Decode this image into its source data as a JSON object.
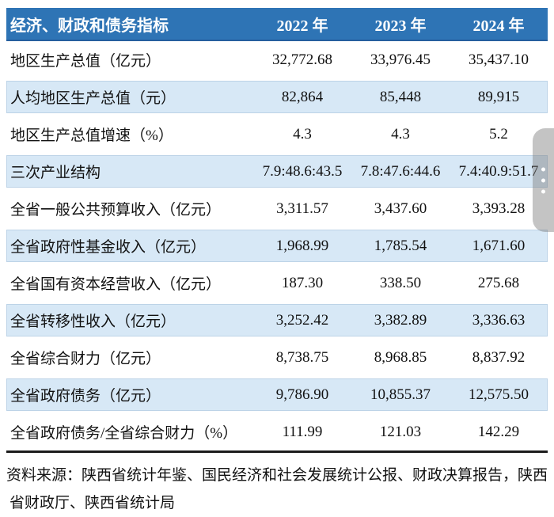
{
  "colors": {
    "header_bg": "#2e74b5",
    "header_border": "#255f9e",
    "header_text": "#ffffff",
    "shaded_row_bg": "#d7e8f6",
    "body_text": "#111111",
    "bottom_rule": "#1c1c1c",
    "scroll_handle": "#7d7d7d"
  },
  "table": {
    "header": {
      "indicator_label": "经济、财政和债务指标",
      "year_columns": [
        "2022 年",
        "2023 年",
        "2024 年"
      ]
    },
    "rows": [
      {
        "label": "地区生产总值（亿元）",
        "values": [
          "32,772.68",
          "33,976.45",
          "35,437.10"
        ],
        "shaded": false
      },
      {
        "label": "人均地区生产总值（元）",
        "values": [
          "82,864",
          "85,448",
          "89,915"
        ],
        "shaded": true
      },
      {
        "label": "地区生产总值增速（%）",
        "values": [
          "4.3",
          "4.3",
          "5.2"
        ],
        "shaded": false
      },
      {
        "label": "三次产业结构",
        "values": [
          "7.9:48.6:43.5",
          "7.8:47.6:44.6",
          "7.4:40.9:51.7"
        ],
        "shaded": true
      },
      {
        "label": "全省一般公共预算收入（亿元）",
        "values": [
          "3,311.57",
          "3,437.60",
          "3,393.28"
        ],
        "shaded": false
      },
      {
        "label": "全省政府性基金收入（亿元）",
        "values": [
          "1,968.99",
          "1,785.54",
          "1,671.60"
        ],
        "shaded": true
      },
      {
        "label": "全省国有资本经营收入（亿元）",
        "values": [
          "187.30",
          "338.50",
          "275.68"
        ],
        "shaded": false
      },
      {
        "label": "全省转移性收入（亿元）",
        "values": [
          "3,252.42",
          "3,382.89",
          "3,336.63"
        ],
        "shaded": true
      },
      {
        "label": "全省综合财力（亿元）",
        "values": [
          "8,738.75",
          "8,968.85",
          "8,837.92"
        ],
        "shaded": false
      },
      {
        "label": "全省政府债务（亿元）",
        "values": [
          "9,786.90",
          "10,855.37",
          "12,575.50"
        ],
        "shaded": true
      },
      {
        "label": "全省政府债务/全省综合财力（%）",
        "values": [
          "111.99",
          "121.03",
          "142.29"
        ],
        "shaded": false
      }
    ]
  },
  "footnote": {
    "line1": "资料来源：陕西省统计年鉴、国民经济和社会发展统计公报、财政决算报告，陕西",
    "line2": "省财政厅、陕西省统计局"
  },
  "scrollbar": {
    "icon": "drag-dots-icon"
  }
}
